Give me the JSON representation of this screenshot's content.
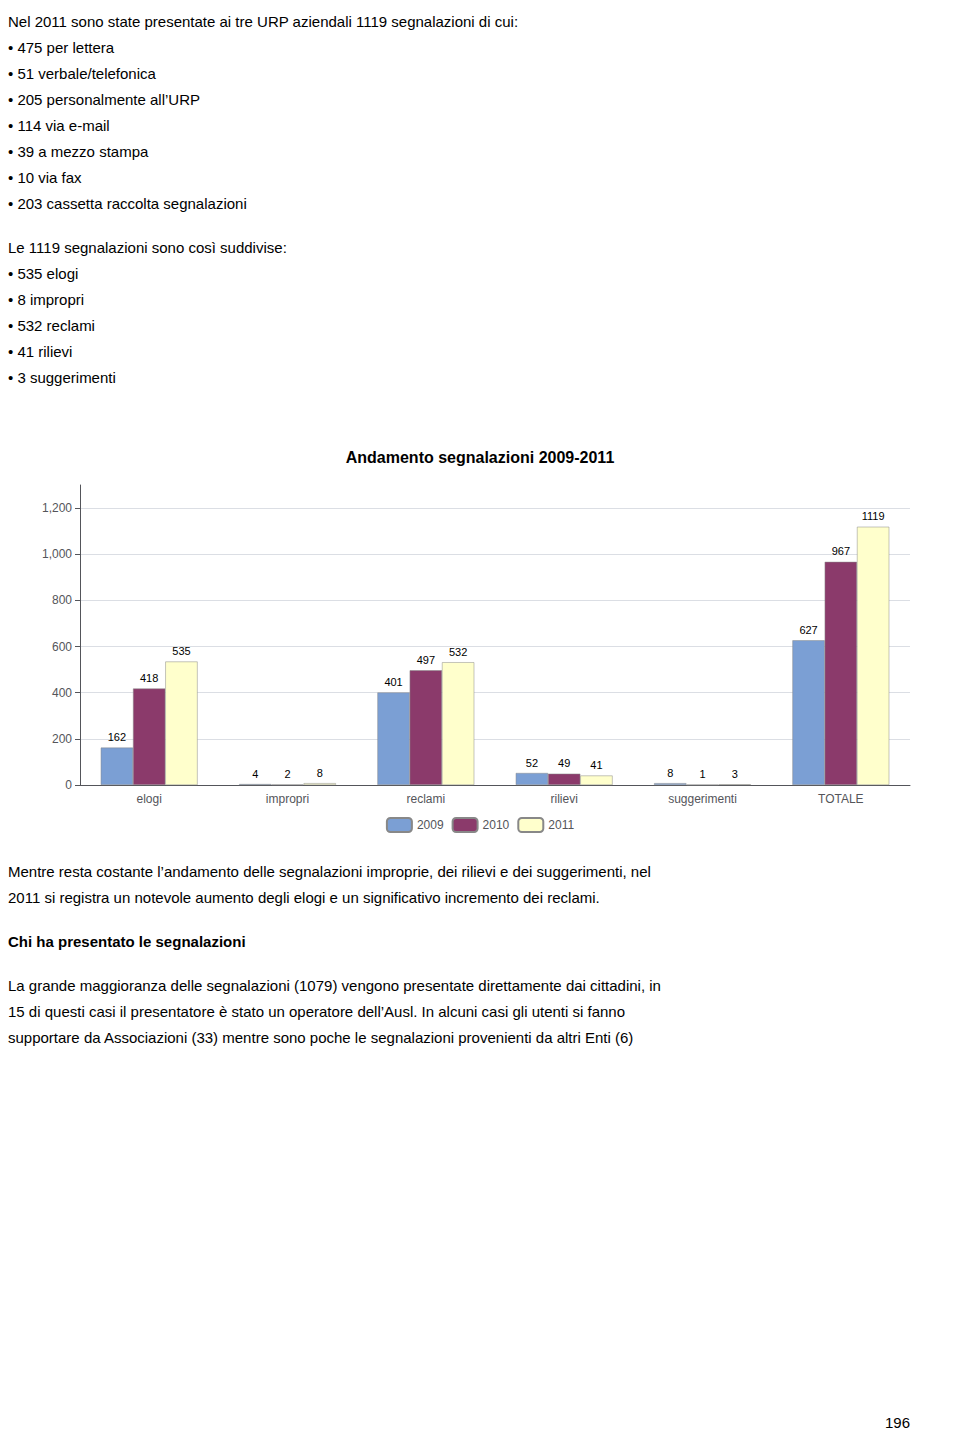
{
  "chart_data": {
    "type": "bar",
    "title": "Andamento segnalazioni 2009-2011",
    "categories": [
      "elogi",
      "impropri",
      "reclami",
      "rilievi",
      "suggerimenti",
      "TOTALE"
    ],
    "series": [
      {
        "name": "2009",
        "color": "#7B9FD4",
        "values": [
          162,
          4,
          401,
          52,
          8,
          627
        ]
      },
      {
        "name": "2010",
        "color": "#8B3A6B",
        "values": [
          418,
          2,
          497,
          49,
          1,
          967
        ]
      },
      {
        "name": "2011",
        "color": "#FFFFCC",
        "values": [
          535,
          8,
          532,
          41,
          3,
          1119
        ]
      }
    ],
    "ylim": [
      0,
      1300
    ],
    "yticks": [
      0,
      200,
      400,
      600,
      800,
      1000,
      1200
    ],
    "grid": true,
    "legend": "bottom",
    "data_labels": true,
    "annotations": [
      "Nel 2011 sono state presentate ai tre URP aziendali 1119 segnalazioni di cui:",
      "• 475 per lettera",
      "• 51 verbale/telefonica",
      "• 205 personalmente all’URP",
      "• 114 via e-mail",
      "• 39 a mezzo stampa",
      "• 10 via fax",
      "• 203 cassetta raccolta segnalazioni",
      "Le 1119 segnalazioni sono così suddivise:",
      "• 535 elogi",
      "• 8 impropri",
      "• 532 reclami",
      "• 41 rilievi",
      "• 3 suggerimenti",
      "Mentre resta costante l’andamento delle segnalazioni improprie, dei rilievi e dei suggerimenti, nel",
      "2011 si registra un notevole aumento degli elogi e un significativo incremento dei reclami.",
      "Chi ha presentato le segnalazioni",
      "La grande maggioranza delle segnalazioni (1079) vengono presentate direttamente dai cittadini, in",
      "15 di questi casi il presentatore è stato un operatore dell’Ausl. In alcuni casi gli utenti si fanno",
      "supportare da Associazioni (33) mentre sono poche le segnalazioni provenienti da altri Enti (6)",
      "196"
    ]
  }
}
